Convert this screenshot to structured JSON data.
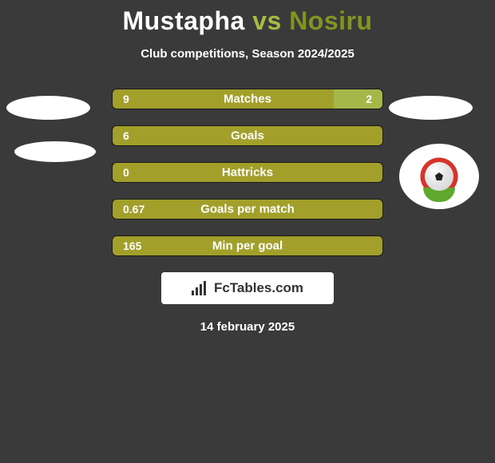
{
  "title": {
    "p1": "Mustapha ",
    "p2": "vs ",
    "p3": "Nosiru"
  },
  "subtitle": "Club competitions, Season 2024/2025",
  "stats": [
    {
      "label": "Matches",
      "left_value": "9",
      "right_value": "2",
      "left_width_pct": 81.8,
      "right_width_pct": 18.2,
      "left_color": "#a2a02b",
      "right_color": "#a4b748"
    },
    {
      "label": "Goals",
      "left_value": "6",
      "right_value": "",
      "left_width_pct": 100,
      "right_width_pct": 0,
      "left_color": "#a2a02b",
      "right_color": "#a4b748"
    },
    {
      "label": "Hattricks",
      "left_value": "0",
      "right_value": "",
      "left_width_pct": 100,
      "right_width_pct": 0,
      "left_color": "#a2a02b",
      "right_color": "#a4b748"
    },
    {
      "label": "Goals per match",
      "left_value": "0.67",
      "right_value": "",
      "left_width_pct": 100,
      "right_width_pct": 0,
      "left_color": "#a2a02b",
      "right_color": "#a4b748"
    },
    {
      "label": "Min per goal",
      "left_value": "165",
      "right_value": "",
      "left_width_pct": 100,
      "right_width_pct": 0,
      "left_color": "#a2a02b",
      "right_color": "#a4b748"
    }
  ],
  "branding": {
    "text": "FcTables.com"
  },
  "date": "14 february 2025",
  "colors": {
    "background": "#3a3a3a",
    "text": "#ffffff",
    "badge_bg": "#ffffff",
    "brand_box_bg": "#ffffff",
    "brand_text": "#333333",
    "bar_border": "#1a1a1a"
  }
}
